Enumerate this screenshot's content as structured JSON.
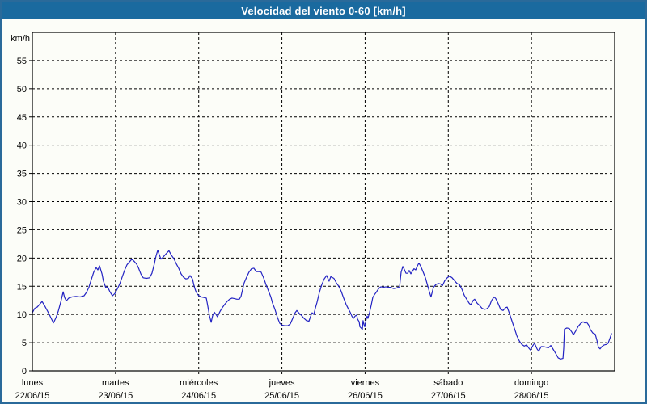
{
  "window": {
    "title": "Velocidad del viento 0-60 [km/h]",
    "title_bar_color": "#1a6a9f",
    "border_color": "#2a6a9a",
    "background_color": "#fcfdf8"
  },
  "chart_data": {
    "type": "line",
    "title": "Velocidad del viento 0-60 [km/h]",
    "grid": "dashed",
    "legend": "none",
    "line_color": "#2323c3",
    "axis_color": "#000000",
    "y_axis": {
      "unit_label": "km/h",
      "min": 0,
      "max": 60,
      "tick_step": 5,
      "tick_labels": [
        0,
        5,
        10,
        15,
        20,
        25,
        30,
        35,
        40,
        45,
        50,
        55
      ]
    },
    "x_axis": {
      "total_hours": 168,
      "days": [
        {
          "name": "lunes",
          "date": "22/06/15"
        },
        {
          "name": "martes",
          "date": "23/06/15"
        },
        {
          "name": "miércoles",
          "date": "24/06/15"
        },
        {
          "name": "jueves",
          "date": "25/06/15"
        },
        {
          "name": "viernes",
          "date": "26/06/15"
        },
        {
          "name": "sábado",
          "date": "27/06/15"
        },
        {
          "name": "domingo",
          "date": "28/06/15"
        }
      ]
    },
    "series": [
      {
        "name": "velocidad del viento",
        "points": [
          [
            0.0,
            10.3
          ],
          [
            0.7,
            11.1
          ],
          [
            1.4,
            11.3
          ],
          [
            2.1,
            11.8
          ],
          [
            2.8,
            12.3
          ],
          [
            3.5,
            11.6
          ],
          [
            4.2,
            10.8
          ],
          [
            4.9,
            10.0
          ],
          [
            5.6,
            9.1
          ],
          [
            6.1,
            8.5
          ],
          [
            6.8,
            9.4
          ],
          [
            7.5,
            10.6
          ],
          [
            8.2,
            12.2
          ],
          [
            8.9,
            14.0
          ],
          [
            9.3,
            13.0
          ],
          [
            9.8,
            12.4
          ],
          [
            10.5,
            12.9
          ],
          [
            11.4,
            13.1
          ],
          [
            12.6,
            13.2
          ],
          [
            13.8,
            13.1
          ],
          [
            14.9,
            13.3
          ],
          [
            15.6,
            13.9
          ],
          [
            16.3,
            14.8
          ],
          [
            17.0,
            16.2
          ],
          [
            17.7,
            17.5
          ],
          [
            18.4,
            18.3
          ],
          [
            18.9,
            17.9
          ],
          [
            19.4,
            18.6
          ],
          [
            20.1,
            17.2
          ],
          [
            20.5,
            15.9
          ],
          [
            21.2,
            14.7
          ],
          [
            21.7,
            14.9
          ],
          [
            22.4,
            14.0
          ],
          [
            23.1,
            13.3
          ],
          [
            23.8,
            13.7
          ],
          [
            24.5,
            14.5
          ],
          [
            25.2,
            15.4
          ],
          [
            25.9,
            16.6
          ],
          [
            26.6,
            17.8
          ],
          [
            27.3,
            18.8
          ],
          [
            28.0,
            19.3
          ],
          [
            28.7,
            19.8
          ],
          [
            29.4,
            19.4
          ],
          [
            30.1,
            18.9
          ],
          [
            30.6,
            18.3
          ],
          [
            31.3,
            17.2
          ],
          [
            32.0,
            16.5
          ],
          [
            32.9,
            16.4
          ],
          [
            33.8,
            16.5
          ],
          [
            34.5,
            17.3
          ],
          [
            35.2,
            19.0
          ],
          [
            35.7,
            20.4
          ],
          [
            36.2,
            21.4
          ],
          [
            36.6,
            20.6
          ],
          [
            37.1,
            19.8
          ],
          [
            37.8,
            20.2
          ],
          [
            38.5,
            20.7
          ],
          [
            39.4,
            21.3
          ],
          [
            40.1,
            20.5
          ],
          [
            40.8,
            19.9
          ],
          [
            41.5,
            19.0
          ],
          [
            42.2,
            18.2
          ],
          [
            42.9,
            17.2
          ],
          [
            43.6,
            16.6
          ],
          [
            44.3,
            16.3
          ],
          [
            45.0,
            16.4
          ],
          [
            45.5,
            16.9
          ],
          [
            46.2,
            16.3
          ],
          [
            46.7,
            15.0
          ],
          [
            47.1,
            14.2
          ],
          [
            47.6,
            13.6
          ],
          [
            48.1,
            13.3
          ],
          [
            48.8,
            13.1
          ],
          [
            49.5,
            13.0
          ],
          [
            50.2,
            12.9
          ],
          [
            50.6,
            11.5
          ],
          [
            51.1,
            9.8
          ],
          [
            51.6,
            8.6
          ],
          [
            52.0,
            9.8
          ],
          [
            52.5,
            10.4
          ],
          [
            53.0,
            10.0
          ],
          [
            53.4,
            9.6
          ],
          [
            54.1,
            10.5
          ],
          [
            54.8,
            11.2
          ],
          [
            55.5,
            11.8
          ],
          [
            56.2,
            12.3
          ],
          [
            56.9,
            12.7
          ],
          [
            57.6,
            12.9
          ],
          [
            58.3,
            12.8
          ],
          [
            59.0,
            12.7
          ],
          [
            59.7,
            12.7
          ],
          [
            60.2,
            13.2
          ],
          [
            60.7,
            14.5
          ],
          [
            61.1,
            15.6
          ],
          [
            61.8,
            16.6
          ],
          [
            62.5,
            17.5
          ],
          [
            63.2,
            18.1
          ],
          [
            63.9,
            18.2
          ],
          [
            64.6,
            17.6
          ],
          [
            65.3,
            17.6
          ],
          [
            66.0,
            17.5
          ],
          [
            66.7,
            16.5
          ],
          [
            67.4,
            15.3
          ],
          [
            68.1,
            14.2
          ],
          [
            68.8,
            13.1
          ],
          [
            69.3,
            12.0
          ],
          [
            70.0,
            10.9
          ],
          [
            70.7,
            9.5
          ],
          [
            71.4,
            8.4
          ],
          [
            72.1,
            8.1
          ],
          [
            72.8,
            8.0
          ],
          [
            73.7,
            8.0
          ],
          [
            74.4,
            8.3
          ],
          [
            75.1,
            9.3
          ],
          [
            75.8,
            10.3
          ],
          [
            76.3,
            10.7
          ],
          [
            77.0,
            10.2
          ],
          [
            77.7,
            9.8
          ],
          [
            78.4,
            9.3
          ],
          [
            79.1,
            8.9
          ],
          [
            79.8,
            8.8
          ],
          [
            80.3,
            9.7
          ],
          [
            80.7,
            10.3
          ],
          [
            81.2,
            10.0
          ],
          [
            81.7,
            11.2
          ],
          [
            82.1,
            12.1
          ],
          [
            82.8,
            13.9
          ],
          [
            83.5,
            15.3
          ],
          [
            84.2,
            16.3
          ],
          [
            84.9,
            16.9
          ],
          [
            85.6,
            15.9
          ],
          [
            86.1,
            16.7
          ],
          [
            87.0,
            16.4
          ],
          [
            87.7,
            15.6
          ],
          [
            88.4,
            15.0
          ],
          [
            89.1,
            14.1
          ],
          [
            89.8,
            12.9
          ],
          [
            90.5,
            11.8
          ],
          [
            91.0,
            11.2
          ],
          [
            91.7,
            10.4
          ],
          [
            92.2,
            9.7
          ],
          [
            92.6,
            9.3
          ],
          [
            93.1,
            9.7
          ],
          [
            93.6,
            9.9
          ],
          [
            93.8,
            9.2
          ],
          [
            94.3,
            8.7
          ],
          [
            94.5,
            7.8
          ],
          [
            95.0,
            7.5
          ],
          [
            95.2,
            7.3
          ],
          [
            95.4,
            8.9
          ],
          [
            95.7,
            8.2
          ],
          [
            95.9,
            7.8
          ],
          [
            96.4,
            9.4
          ],
          [
            96.6,
            9.7
          ],
          [
            96.8,
            9.3
          ],
          [
            97.3,
            10.4
          ],
          [
            97.8,
            11.7
          ],
          [
            98.2,
            13.0
          ],
          [
            98.7,
            13.5
          ],
          [
            99.2,
            13.9
          ],
          [
            99.6,
            14.3
          ],
          [
            100.1,
            14.7
          ],
          [
            100.6,
            14.9
          ],
          [
            101.3,
            14.8
          ],
          [
            102.0,
            14.9
          ],
          [
            102.7,
            14.8
          ],
          [
            103.4,
            14.8
          ],
          [
            104.1,
            14.6
          ],
          [
            104.8,
            14.6
          ],
          [
            105.5,
            14.8
          ],
          [
            105.9,
            14.7
          ],
          [
            106.4,
            17.5
          ],
          [
            106.9,
            18.5
          ],
          [
            107.3,
            18.0
          ],
          [
            107.8,
            17.3
          ],
          [
            108.3,
            17.3
          ],
          [
            108.7,
            17.8
          ],
          [
            109.2,
            17.2
          ],
          [
            109.7,
            17.7
          ],
          [
            110.1,
            18.1
          ],
          [
            110.6,
            17.9
          ],
          [
            111.1,
            18.6
          ],
          [
            111.5,
            19.1
          ],
          [
            112.0,
            18.6
          ],
          [
            112.7,
            17.6
          ],
          [
            113.4,
            16.5
          ],
          [
            114.1,
            15.0
          ],
          [
            114.6,
            13.9
          ],
          [
            115.0,
            13.1
          ],
          [
            115.7,
            14.8
          ],
          [
            116.4,
            15.3
          ],
          [
            117.1,
            15.5
          ],
          [
            117.8,
            15.4
          ],
          [
            118.3,
            15.1
          ],
          [
            119.0,
            16.0
          ],
          [
            119.7,
            16.5
          ],
          [
            120.4,
            16.8
          ],
          [
            121.1,
            16.5
          ],
          [
            121.8,
            16.0
          ],
          [
            122.5,
            15.5
          ],
          [
            123.2,
            15.3
          ],
          [
            123.9,
            14.5
          ],
          [
            124.6,
            13.4
          ],
          [
            125.3,
            12.7
          ],
          [
            126.0,
            12.0
          ],
          [
            126.5,
            11.7
          ],
          [
            127.2,
            12.5
          ],
          [
            127.6,
            12.7
          ],
          [
            128.3,
            12.0
          ],
          [
            129.0,
            11.6
          ],
          [
            129.7,
            11.1
          ],
          [
            130.4,
            10.9
          ],
          [
            131.1,
            11.0
          ],
          [
            131.8,
            11.4
          ],
          [
            132.5,
            12.5
          ],
          [
            133.2,
            13.1
          ],
          [
            133.7,
            12.8
          ],
          [
            134.4,
            11.9
          ],
          [
            135.1,
            10.9
          ],
          [
            135.8,
            10.7
          ],
          [
            136.5,
            11.2
          ],
          [
            137.0,
            11.3
          ],
          [
            137.7,
            10.1
          ],
          [
            138.4,
            8.8
          ],
          [
            139.1,
            7.5
          ],
          [
            139.8,
            6.2
          ],
          [
            140.5,
            5.3
          ],
          [
            141.2,
            4.7
          ],
          [
            141.9,
            4.4
          ],
          [
            142.6,
            4.6
          ],
          [
            143.3,
            4.0
          ],
          [
            143.7,
            3.7
          ],
          [
            144.4,
            4.5
          ],
          [
            144.9,
            4.9
          ],
          [
            145.6,
            3.9
          ],
          [
            146.1,
            3.5
          ],
          [
            146.8,
            4.3
          ],
          [
            147.5,
            4.3
          ],
          [
            148.2,
            4.2
          ],
          [
            148.9,
            4.1
          ],
          [
            149.6,
            4.5
          ],
          [
            150.3,
            3.8
          ],
          [
            151.0,
            3.1
          ],
          [
            151.7,
            2.3
          ],
          [
            152.4,
            2.1
          ],
          [
            153.1,
            2.2
          ],
          [
            153.3,
            4.0
          ],
          [
            153.5,
            7.4
          ],
          [
            154.2,
            7.6
          ],
          [
            154.9,
            7.5
          ],
          [
            155.6,
            6.9
          ],
          [
            156.1,
            6.4
          ],
          [
            156.8,
            7.1
          ],
          [
            157.5,
            7.9
          ],
          [
            158.2,
            8.4
          ],
          [
            158.9,
            8.7
          ],
          [
            159.4,
            8.5
          ],
          [
            159.8,
            8.7
          ],
          [
            160.5,
            8.1
          ],
          [
            161.0,
            7.3
          ],
          [
            161.7,
            6.7
          ],
          [
            162.4,
            6.5
          ],
          [
            162.9,
            5.4
          ],
          [
            163.3,
            4.2
          ],
          [
            163.8,
            3.9
          ],
          [
            164.3,
            4.3
          ],
          [
            165.0,
            4.6
          ],
          [
            165.7,
            4.7
          ],
          [
            166.1,
            4.9
          ],
          [
            166.6,
            5.7
          ],
          [
            167.1,
            6.6
          ]
        ]
      }
    ]
  }
}
